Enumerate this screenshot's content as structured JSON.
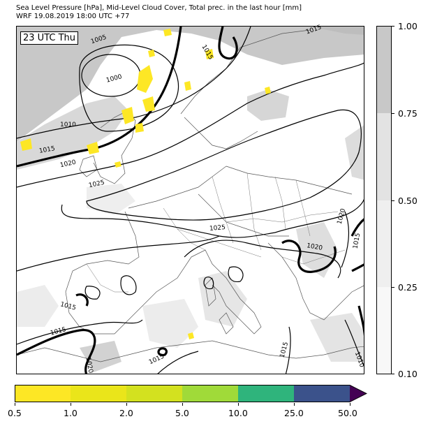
{
  "header": {
    "title_line1": "Sea Level Pressure [hPa], Mid-Level Cloud Cover, Total prec. in the last hour [mm]",
    "title_line2": "WRF 19.08.2019 18:00 UTC +77"
  },
  "map": {
    "time_label": "23 UTC Thu",
    "isobar_labels": [
      "1005",
      "1000",
      "1010",
      "1015",
      "1020",
      "1025",
      "1015",
      "1015",
      "1025",
      "1020",
      "1020",
      "1015",
      "1015",
      "1015",
      "1015",
      "1015",
      "1010",
      "1020"
    ]
  },
  "cloud_colorbar": {
    "ticks": [
      "1.00",
      "0.75",
      "0.50",
      "0.25",
      "0.10"
    ],
    "colors": [
      "#c8c8c8",
      "#e3e3e3",
      "#efefef",
      "#f8f8f8"
    ]
  },
  "precip_colorbar": {
    "ticks": [
      "0.5",
      "1.0",
      "2.0",
      "5.0",
      "10.0",
      "25.0",
      "50.0"
    ],
    "colors": [
      "#fde725",
      "#eae51a",
      "#d3e11f",
      "#a0da39",
      "#2fb47c",
      "#3b528b",
      "#440154"
    ]
  }
}
